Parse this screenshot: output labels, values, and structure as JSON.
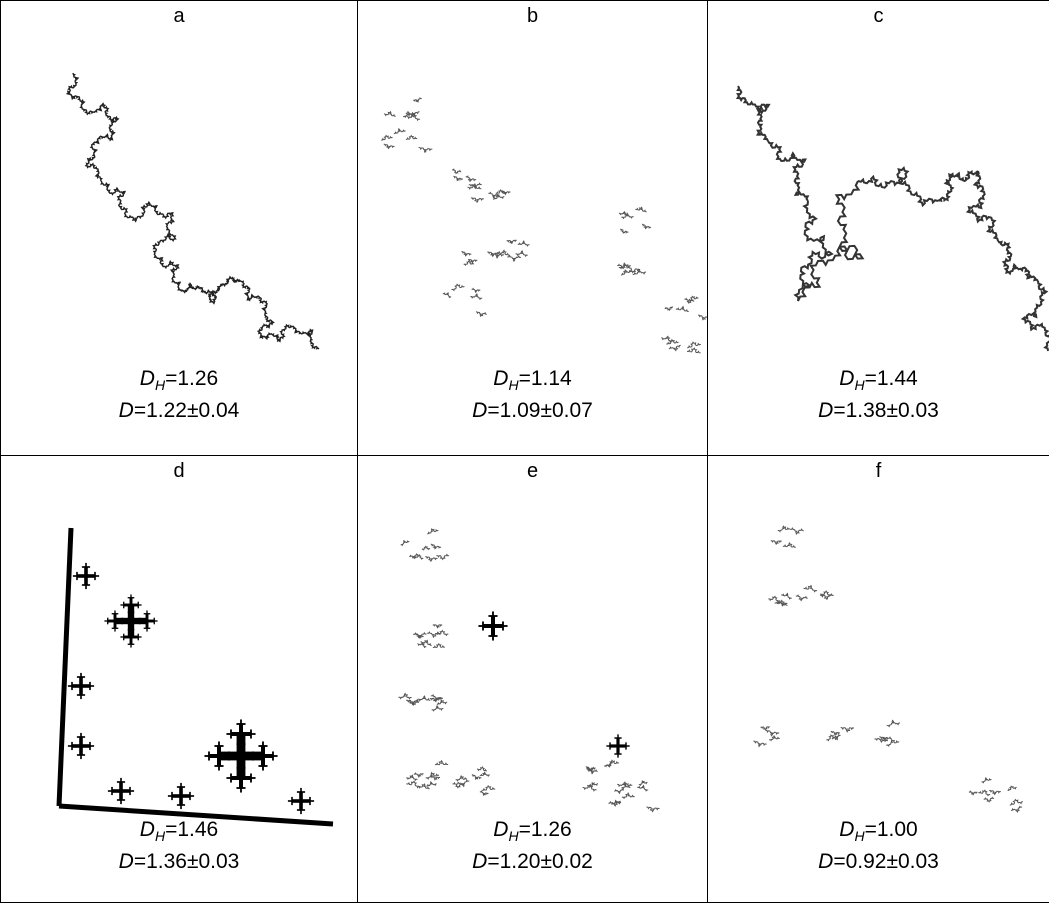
{
  "panels": [
    {
      "label": "a",
      "dh": [
        "D",
        "H",
        "=1.26"
      ],
      "d": [
        "D",
        "=1.22±0.04"
      ]
    },
    {
      "label": "b",
      "dh": [
        "D",
        "H",
        "=1.14"
      ],
      "d": [
        "D",
        "=1.09±0.07"
      ]
    },
    {
      "label": "c",
      "dh": [
        "D",
        "H",
        "=1.44"
      ],
      "d": [
        "D",
        "=1.38±0.03"
      ]
    },
    {
      "label": "d",
      "dh": [
        "D",
        "H",
        "=1.46"
      ],
      "d": [
        "D",
        "=1.36±0.03"
      ]
    },
    {
      "label": "e",
      "dh": [
        "D",
        "H",
        "=1.26"
      ],
      "d": [
        "D",
        "=1.20±0.02"
      ]
    },
    {
      "label": "f",
      "dh": [
        "D",
        "H",
        "=1.00"
      ],
      "d": [
        "D",
        "=0.92±0.03"
      ]
    }
  ]
}
